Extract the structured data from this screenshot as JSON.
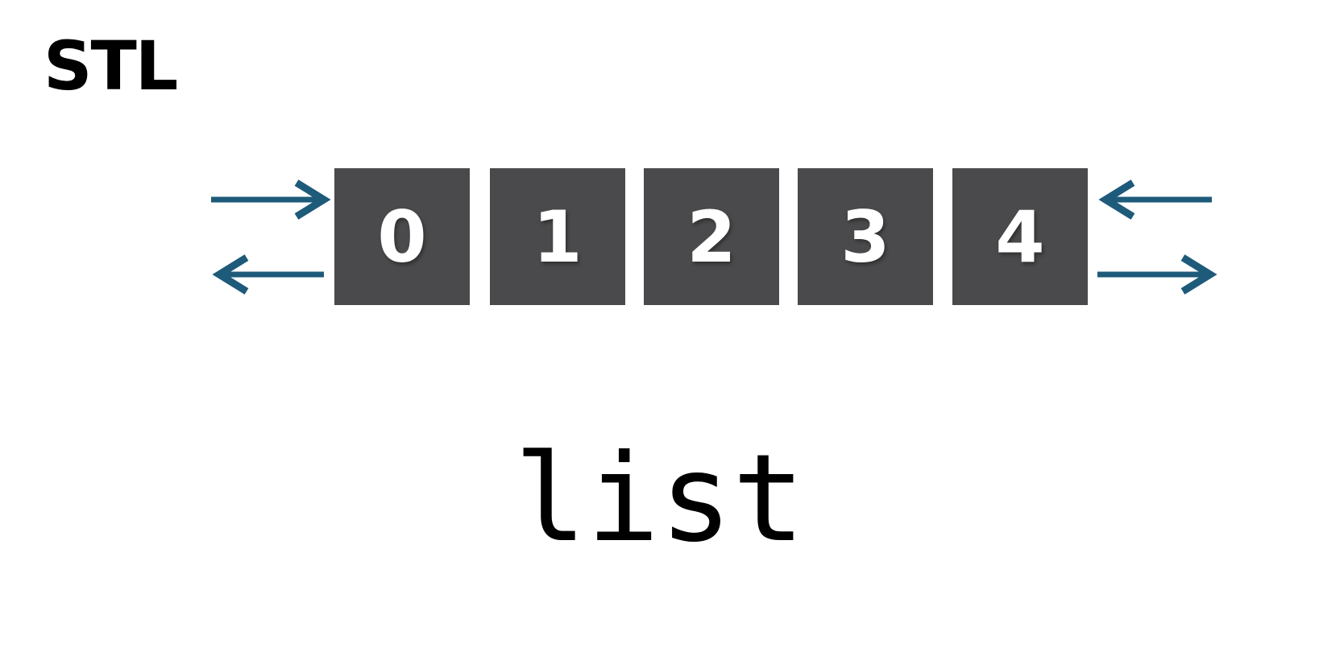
{
  "title": "STL",
  "diagram": {
    "cells": [
      {
        "label": "0"
      },
      {
        "label": "1"
      },
      {
        "label": "2"
      },
      {
        "label": "3"
      },
      {
        "label": "4"
      }
    ],
    "colors": {
      "cell_fill": "#4a494b",
      "cell_text": "#ffffff",
      "arrow": "#1e5a7a"
    }
  },
  "caption": "list"
}
